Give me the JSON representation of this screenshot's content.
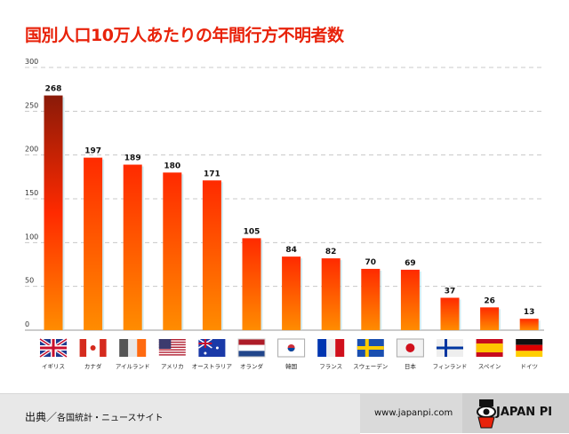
{
  "chart_data": {
    "type": "bar",
    "title": "国別人口10万人あたりの年間行方不明者数",
    "categories": [
      "イギリス",
      "カナダ",
      "アイルランド",
      "アメリカ",
      "オーストラリア",
      "オランダ",
      "韓国",
      "フランス",
      "スウェーデン",
      "日本",
      "フィンランド",
      "スペイン",
      "ドイツ"
    ],
    "flags": [
      "uk-flag-icon",
      "canada-flag-icon",
      "ireland-flag-icon",
      "usa-flag-icon",
      "australia-flag-icon",
      "netherlands-flag-icon",
      "korea-flag-icon",
      "france-flag-icon",
      "sweden-flag-icon",
      "japan-flag-icon",
      "finland-flag-icon",
      "spain-flag-icon",
      "germany-flag-icon"
    ],
    "values": [
      268,
      197,
      189,
      180,
      171,
      105,
      84,
      82,
      70,
      69,
      37,
      26,
      13
    ],
    "ylim": [
      0,
      300
    ],
    "yticks": [
      "0",
      "50",
      "100",
      "150",
      "200",
      "250",
      "300"
    ],
    "grid": true,
    "colors": {
      "bar_top": "#ff2a00",
      "bar_bottom": "#ff8c00",
      "first_bar_top": "#8a1a08",
      "title": "#e8220a"
    }
  },
  "footer": {
    "source_label": "出典／",
    "source_text": "各国統計・ニュースサイト",
    "url": "www.japanpi.com",
    "logo": "JAPAN PI"
  }
}
